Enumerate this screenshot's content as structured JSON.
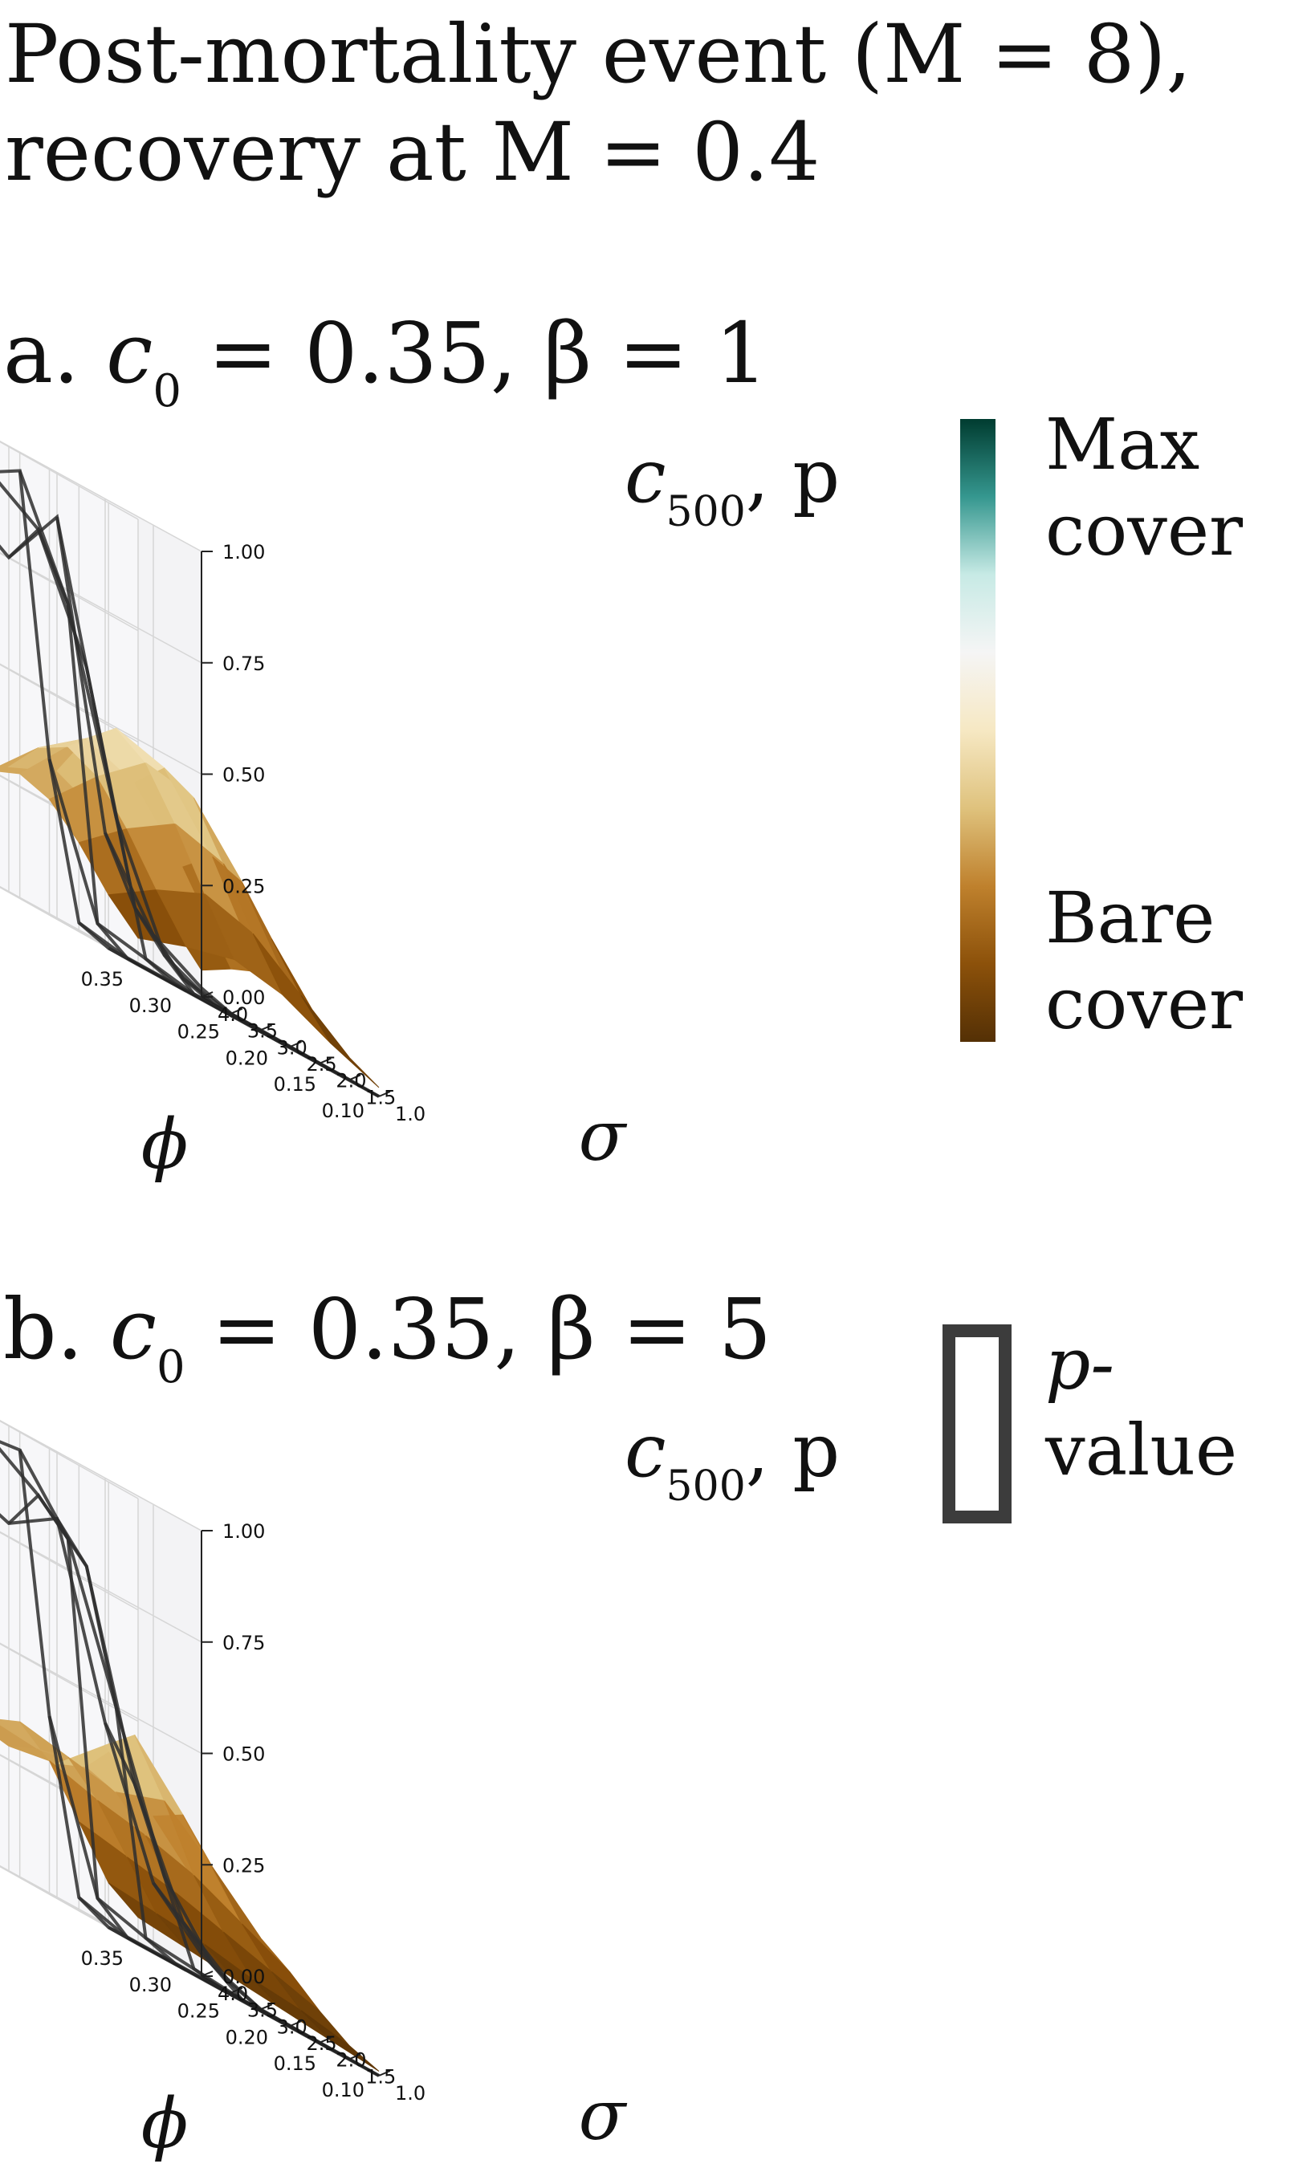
{
  "figure": {
    "title_line1": "Post-mortality event (M = 8),",
    "title_line2": "recovery at M = 0.4"
  },
  "legend": {
    "colorbar_top_line1": "Max",
    "colorbar_top_line2": "cover",
    "colorbar_bottom_line1": "Bare",
    "colorbar_bottom_line2": "cover",
    "wireframe_line1": "p-",
    "wireframe_line2": "value",
    "colors": [
      "#003c30",
      "#35978f",
      "#c7eae5",
      "#f5f5f5",
      "#f6e8c3",
      "#dfc27d",
      "#bf812d",
      "#8c510a",
      "#543005"
    ]
  },
  "chart_data": [
    {
      "type": "surface",
      "panel": "a",
      "label_prefix": "a.",
      "label_c0": "c",
      "label_c0_sub": "0",
      "label_rest": " = 0.35, β = 1",
      "zlabel": "c",
      "zlabel_sub": "500",
      "zlabel_rest": ", p",
      "xlabel": "ϕ",
      "ylabel": "σ",
      "x_ticks": [
        "0.35",
        "0.30",
        "0.25",
        "0.20",
        "0.15",
        "0.10"
      ],
      "y_ticks": [
        "1.0",
        "1.5",
        "2.0",
        "2.5",
        "3.0",
        "3.5",
        "4.0"
      ],
      "z_ticks": [
        "0.00",
        "0.25",
        "0.50",
        "0.75",
        "1.00"
      ],
      "phi": [
        0.35,
        0.3,
        0.25,
        0.2,
        0.15,
        0.1
      ],
      "sigma": [
        1.0,
        1.5,
        2.0,
        2.5,
        3.0,
        3.5,
        4.0
      ],
      "zlim": [
        0,
        1
      ],
      "c500": [
        [
          0.06,
          0.12,
          0.2,
          0.26,
          0.28,
          0.25,
          0.19
        ],
        [
          0.1,
          0.19,
          0.29,
          0.37,
          0.4,
          0.36,
          0.28
        ],
        [
          0.13,
          0.24,
          0.36,
          0.46,
          0.5,
          0.44,
          0.33
        ],
        [
          0.11,
          0.21,
          0.33,
          0.44,
          0.47,
          0.4,
          0.28
        ],
        [
          0.06,
          0.13,
          0.22,
          0.31,
          0.33,
          0.27,
          0.17
        ],
        [
          0.02,
          0.05,
          0.09,
          0.13,
          0.13,
          0.1,
          0.06
        ]
      ],
      "p": [
        [
          0.0,
          0.0,
          0.02,
          0.35,
          0.96,
          0.92,
          0.82
        ],
        [
          0.0,
          0.0,
          0.0,
          0.04,
          0.72,
          0.85,
          0.75
        ],
        [
          0.0,
          0.0,
          0.0,
          0.02,
          0.3,
          0.6,
          0.9
        ],
        [
          0.0,
          0.0,
          0.0,
          0.0,
          0.05,
          0.12,
          0.25
        ],
        [
          0.0,
          0.0,
          0.0,
          0.0,
          0.0,
          0.02,
          0.08
        ],
        [
          0.0,
          0.0,
          0.0,
          0.0,
          0.0,
          0.0,
          0.02
        ]
      ]
    },
    {
      "type": "surface",
      "panel": "b",
      "label_prefix": "b.",
      "label_c0": "c",
      "label_c0_sub": "0",
      "label_rest": " = 0.35, β = 5",
      "zlabel": "c",
      "zlabel_sub": "500",
      "zlabel_rest": ", p",
      "xlabel": "ϕ",
      "ylabel": "σ",
      "x_ticks": [
        "0.35",
        "0.30",
        "0.25",
        "0.20",
        "0.15",
        "0.10"
      ],
      "y_ticks": [
        "1.0",
        "1.5",
        "2.0",
        "2.5",
        "3.0",
        "3.5",
        "4.0"
      ],
      "z_ticks": [
        "0.00",
        "0.25",
        "0.50",
        "0.75",
        "1.00"
      ],
      "phi": [
        0.35,
        0.3,
        0.25,
        0.2,
        0.15,
        0.1
      ],
      "sigma": [
        1.0,
        1.5,
        2.0,
        2.5,
        3.0,
        3.5,
        4.0
      ],
      "zlim": [
        0,
        1
      ],
      "c500": [
        [
          0.06,
          0.1,
          0.2,
          0.3,
          0.35,
          0.32,
          0.3
        ],
        [
          0.05,
          0.09,
          0.18,
          0.27,
          0.33,
          0.31,
          0.28
        ],
        [
          0.04,
          0.08,
          0.16,
          0.25,
          0.31,
          0.33,
          0.3
        ],
        [
          0.03,
          0.06,
          0.13,
          0.22,
          0.35,
          0.46,
          0.4
        ],
        [
          0.02,
          0.05,
          0.1,
          0.17,
          0.26,
          0.34,
          0.3
        ],
        [
          0.01,
          0.03,
          0.07,
          0.12,
          0.16,
          0.2,
          0.19
        ]
      ],
      "p": [
        [
          0.0,
          0.0,
          0.03,
          0.4,
          0.96,
          0.95,
          0.82
        ],
        [
          0.0,
          0.0,
          0.0,
          0.05,
          0.82,
          0.88,
          0.78
        ],
        [
          0.0,
          0.0,
          0.0,
          0.02,
          0.5,
          0.78,
          0.85
        ],
        [
          0.0,
          0.0,
          0.0,
          0.01,
          0.18,
          0.35,
          0.45
        ],
        [
          0.0,
          0.0,
          0.0,
          0.0,
          0.04,
          0.1,
          0.15
        ],
        [
          0.0,
          0.0,
          0.0,
          0.0,
          0.0,
          0.02,
          0.05
        ]
      ]
    }
  ]
}
